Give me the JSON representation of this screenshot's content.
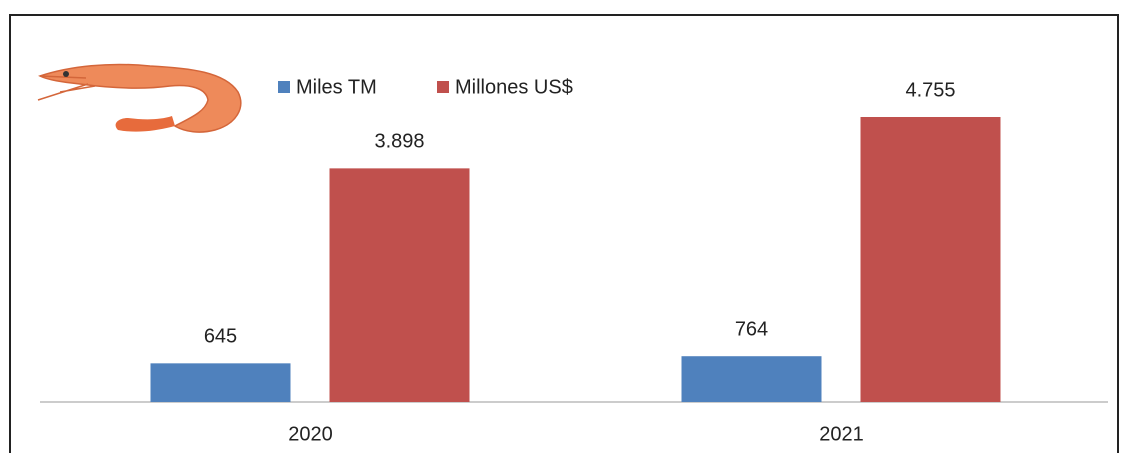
{
  "chart_data": {
    "type": "bar",
    "categories": [
      "2020",
      "2021"
    ],
    "series": [
      {
        "name": "Miles TM",
        "color": "#4f81bd",
        "values": [
          645,
          764
        ]
      },
      {
        "name": "Millones US$",
        "color": "#c0504d",
        "values": [
          3898,
          4755
        ],
        "value_labels": [
          "3.898",
          "4.755"
        ]
      }
    ]
  }
}
